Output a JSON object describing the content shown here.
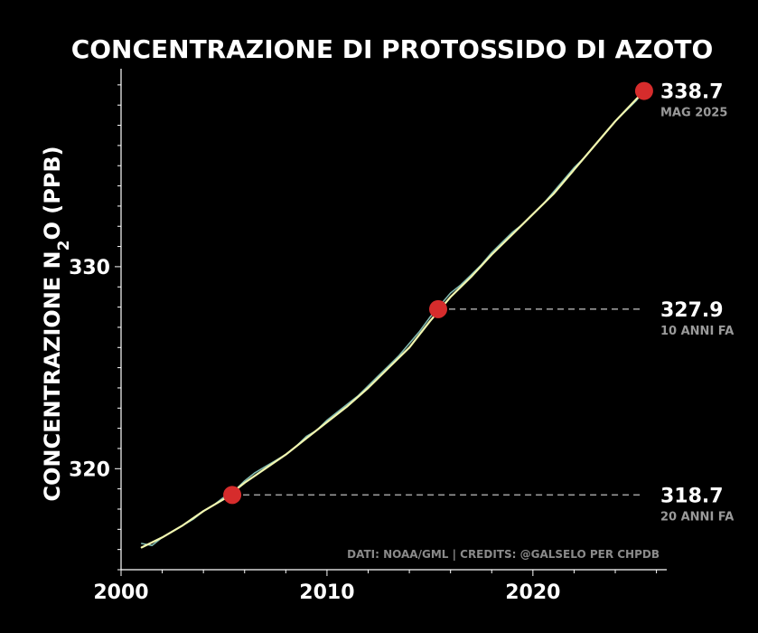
{
  "chart_data": {
    "type": "line",
    "title": "CONCENTRAZIONE DI PROTOSSIDO DI AZOTO",
    "ylabel_prefix": "CONCENTRAZIONE N",
    "ylabel_subscript": "2",
    "ylabel_suffix": "O (PPB)",
    "xlabel": "",
    "xlim": [
      2000,
      2026.5
    ],
    "ylim": [
      315.0,
      339.8
    ],
    "x_ticks": [
      2000,
      2010,
      2020
    ],
    "y_ticks": [
      320,
      330
    ],
    "colors": {
      "background": "#000000",
      "monthly": "#7fb8b0",
      "trend": "#f2f7b0",
      "marker": "#d62c2c",
      "reference_line": "#999999",
      "axis": "#ffffff"
    },
    "series": [
      {
        "name": "monthly",
        "x": [
          2001.0,
          2001.5,
          2002.0,
          2002.5,
          2003.0,
          2003.5,
          2004.0,
          2004.5,
          2005.0,
          2005.5,
          2006.0,
          2006.5,
          2007.0,
          2007.5,
          2008.0,
          2008.5,
          2009.0,
          2009.5,
          2010.0,
          2010.5,
          2011.0,
          2011.5,
          2012.0,
          2012.5,
          2013.0,
          2013.5,
          2014.0,
          2014.5,
          2015.0,
          2015.5,
          2016.0,
          2016.5,
          2017.0,
          2017.5,
          2018.0,
          2018.5,
          2019.0,
          2019.5,
          2020.0,
          2020.5,
          2021.0,
          2021.5,
          2022.0,
          2022.5,
          2023.0,
          2023.5,
          2024.0,
          2024.5,
          2025.0,
          2025.4
        ],
        "values": [
          316.3,
          316.2,
          316.6,
          316.9,
          317.2,
          317.5,
          317.9,
          318.2,
          318.6,
          318.9,
          319.4,
          319.8,
          320.1,
          320.4,
          320.7,
          321.1,
          321.6,
          321.9,
          322.4,
          322.8,
          323.2,
          323.6,
          324.1,
          324.6,
          325.1,
          325.6,
          326.2,
          326.8,
          327.5,
          328.1,
          328.7,
          329.1,
          329.6,
          330.1,
          330.7,
          331.2,
          331.7,
          332.1,
          332.6,
          333.1,
          333.7,
          334.3,
          334.9,
          335.4,
          336.0,
          336.6,
          337.2,
          337.7,
          338.2,
          338.7
        ]
      },
      {
        "name": "trend",
        "x": [
          2001.0,
          2002.0,
          2003.0,
          2004.0,
          2005.0,
          2006.0,
          2007.0,
          2008.0,
          2009.0,
          2010.0,
          2011.0,
          2012.0,
          2013.0,
          2014.0,
          2015.0,
          2016.0,
          2017.0,
          2018.0,
          2019.0,
          2020.0,
          2021.0,
          2022.0,
          2023.0,
          2024.0,
          2025.4
        ],
        "values": [
          316.1,
          316.6,
          317.2,
          317.9,
          318.5,
          319.3,
          320.0,
          320.7,
          321.5,
          322.3,
          323.1,
          324.0,
          325.0,
          326.0,
          327.3,
          328.5,
          329.5,
          330.6,
          331.6,
          332.6,
          333.6,
          334.8,
          336.0,
          337.2,
          338.7
        ]
      }
    ],
    "annotations": [
      {
        "x": 2005.4,
        "y": 318.7,
        "value": "318.7",
        "label": "20 ANNI FA",
        "reference_line": true
      },
      {
        "x": 2015.4,
        "y": 327.9,
        "value": "327.9",
        "label": "10 ANNI FA",
        "reference_line": true
      },
      {
        "x": 2025.4,
        "y": 338.7,
        "value": "338.7",
        "label": "MAG 2025",
        "reference_line": false
      }
    ],
    "credits": "DATI: NOAA/GML | CREDITS: @GALSELO PER CHPDB"
  }
}
